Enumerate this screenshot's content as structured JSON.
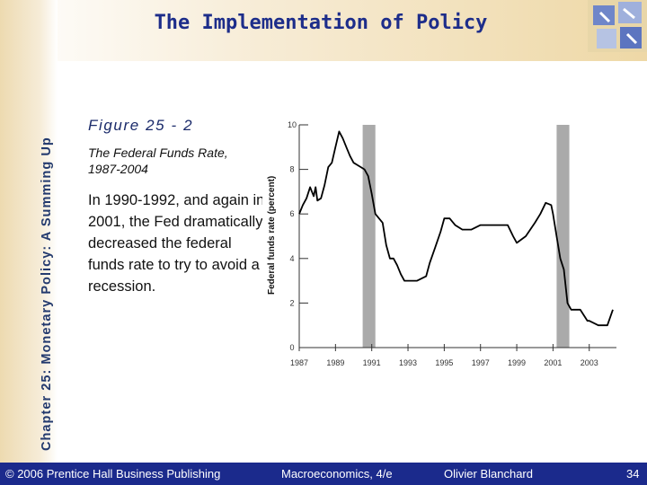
{
  "slide": {
    "side_title": "Chapter 25: Monetary Policy: A Summing Up",
    "title": "The Implementation of Policy"
  },
  "figure": {
    "title": "Figure 25 - 2",
    "subtitle": "The Federal Funds Rate, 1987-2004",
    "body": "In 1990-1992, and again in 2001, the Fed dramatically decreased the federal funds rate to try to avoid a recession."
  },
  "footer": {
    "copyright": "© 2006 Prentice Hall Business Publishing",
    "book": "Macroeconomics, 4/e",
    "author": "Olivier Blanchard",
    "page": "34"
  },
  "colors": {
    "accent": "#1b2a8c",
    "title": "#1d2d8a",
    "recession_band": "#aaaaaa"
  },
  "chart_data": {
    "type": "line",
    "xlabel": "",
    "ylabel": "Federal funds rate (percent)",
    "xlim": [
      1987,
      2004.5
    ],
    "ylim": [
      0,
      10
    ],
    "x_ticks": [
      "1987",
      "1989",
      "1991",
      "1993",
      "1995",
      "1997",
      "1999",
      "2001",
      "2003"
    ],
    "y_ticks": [
      "0",
      "2",
      "4",
      "6",
      "8",
      "10"
    ],
    "shaded_periods": [
      [
        1990.5,
        1991.2
      ],
      [
        2001.2,
        2001.9
      ]
    ],
    "series": [
      {
        "x": [
          1987.0,
          1987.2,
          1987.4,
          1987.6,
          1987.8,
          1987.9,
          1988.0,
          1988.2,
          1988.4,
          1988.6,
          1988.8,
          1989.0,
          1989.2,
          1989.4,
          1989.6,
          1989.8,
          1990.0,
          1990.2,
          1990.4,
          1990.6,
          1990.8,
          1991.0,
          1991.2,
          1991.4,
          1991.6,
          1991.8,
          1992.0,
          1992.2,
          1992.4,
          1992.6,
          1992.8,
          1993.0,
          1993.5,
          1994.0,
          1994.2,
          1994.5,
          1994.8,
          1995.0,
          1995.3,
          1995.6,
          1996.0,
          1996.5,
          1997.0,
          1997.5,
          1998.0,
          1998.5,
          1998.8,
          1999.0,
          1999.5,
          2000.0,
          2000.3,
          2000.6,
          2000.9,
          2001.0,
          2001.2,
          2001.4,
          2001.6,
          2001.8,
          2002.0,
          2002.5,
          2002.9,
          2003.0,
          2003.5,
          2004.0,
          2004.3
        ],
        "y": [
          6.0,
          6.4,
          6.7,
          7.2,
          6.8,
          7.2,
          6.6,
          6.7,
          7.3,
          8.1,
          8.3,
          9.0,
          9.7,
          9.4,
          9.0,
          8.6,
          8.3,
          8.2,
          8.1,
          8.0,
          7.7,
          6.9,
          6.0,
          5.8,
          5.6,
          4.6,
          4.0,
          4.0,
          3.7,
          3.3,
          3.0,
          3.0,
          3.0,
          3.2,
          3.8,
          4.5,
          5.2,
          5.8,
          5.8,
          5.5,
          5.3,
          5.3,
          5.5,
          5.5,
          5.5,
          5.5,
          5.0,
          4.7,
          5.0,
          5.6,
          6.0,
          6.5,
          6.4,
          6.0,
          5.0,
          4.0,
          3.5,
          2.0,
          1.7,
          1.7,
          1.2,
          1.2,
          1.0,
          1.0,
          1.7
        ]
      }
    ]
  }
}
